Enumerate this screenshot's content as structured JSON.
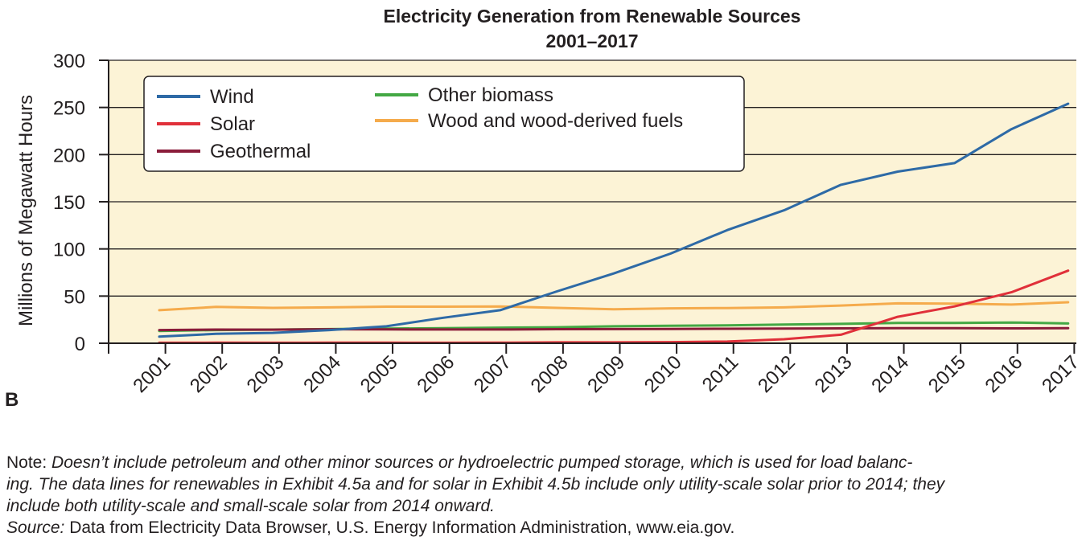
{
  "panel_label": "B",
  "chart_data": {
    "type": "line",
    "title": [
      "Electricity Generation from Renewable Sources",
      "2001–2017"
    ],
    "ylabel": "Millions of Megawatt Hours",
    "xlabel": "",
    "x": [
      2001,
      2002,
      2003,
      2004,
      2005,
      2006,
      2007,
      2008,
      2009,
      2010,
      2011,
      2012,
      2013,
      2014,
      2015,
      2016,
      2017
    ],
    "ylim": [
      0,
      300
    ],
    "yticks": [
      0,
      50,
      100,
      150,
      200,
      250,
      300
    ],
    "grid": true,
    "legend_position": "top-left",
    "background_color": "#fcf3d6",
    "series": [
      {
        "name": "Wind",
        "color": "#2e6aa6",
        "values": [
          7,
          10,
          11,
          14,
          18,
          27,
          35,
          55,
          74,
          95,
          120,
          141,
          168,
          182,
          191,
          227,
          254
        ]
      },
      {
        "name": "Solar",
        "color": "#e0303a",
        "values": [
          0.5,
          0.6,
          0.5,
          0.6,
          0.6,
          0.5,
          0.6,
          0.9,
          0.9,
          1.2,
          1.8,
          4.3,
          9,
          28,
          39,
          54,
          77
        ]
      },
      {
        "name": "Geothermal",
        "color": "#8a1c3a",
        "values": [
          14,
          14.5,
          14.4,
          14.8,
          14.7,
          14.6,
          14.6,
          14.9,
          15,
          15.2,
          15.3,
          15.6,
          15.8,
          15.9,
          15.9,
          15.8,
          15.9
        ]
      },
      {
        "name": "Other biomass",
        "color": "#43a844",
        "values": [
          13,
          14,
          14.5,
          15,
          15.5,
          16,
          16.5,
          17,
          18,
          18.5,
          19,
          19.8,
          20.5,
          21.5,
          21.5,
          22,
          21
        ]
      },
      {
        "name": "Wood and wood-derived fuels",
        "color": "#f5ab4c",
        "values": [
          35,
          38.5,
          37.5,
          38,
          38.8,
          38.8,
          39,
          37.5,
          36,
          37,
          37.3,
          38,
          40,
          42.3,
          41.9,
          41,
          43.5
        ]
      }
    ]
  },
  "notes": {
    "note_prefix": "Note: ",
    "note_text": "Doesn’t include petroleum and other minor sources or hydroelectric pumped storage, which is used for load balanc-",
    "note_text_2": "ing. The data lines for renewables in Exhibit 4.5a and for solar in Exhibit 4.5b include only utility-scale solar prior to 2014; they",
    "note_text_3": "include both utility-scale and small-scale solar from 2014 onward.",
    "source_prefix": "Source:",
    "source_text": " Data from Electricity Data Browser, U.S. Energy Information Administration, www.eia.gov."
  }
}
